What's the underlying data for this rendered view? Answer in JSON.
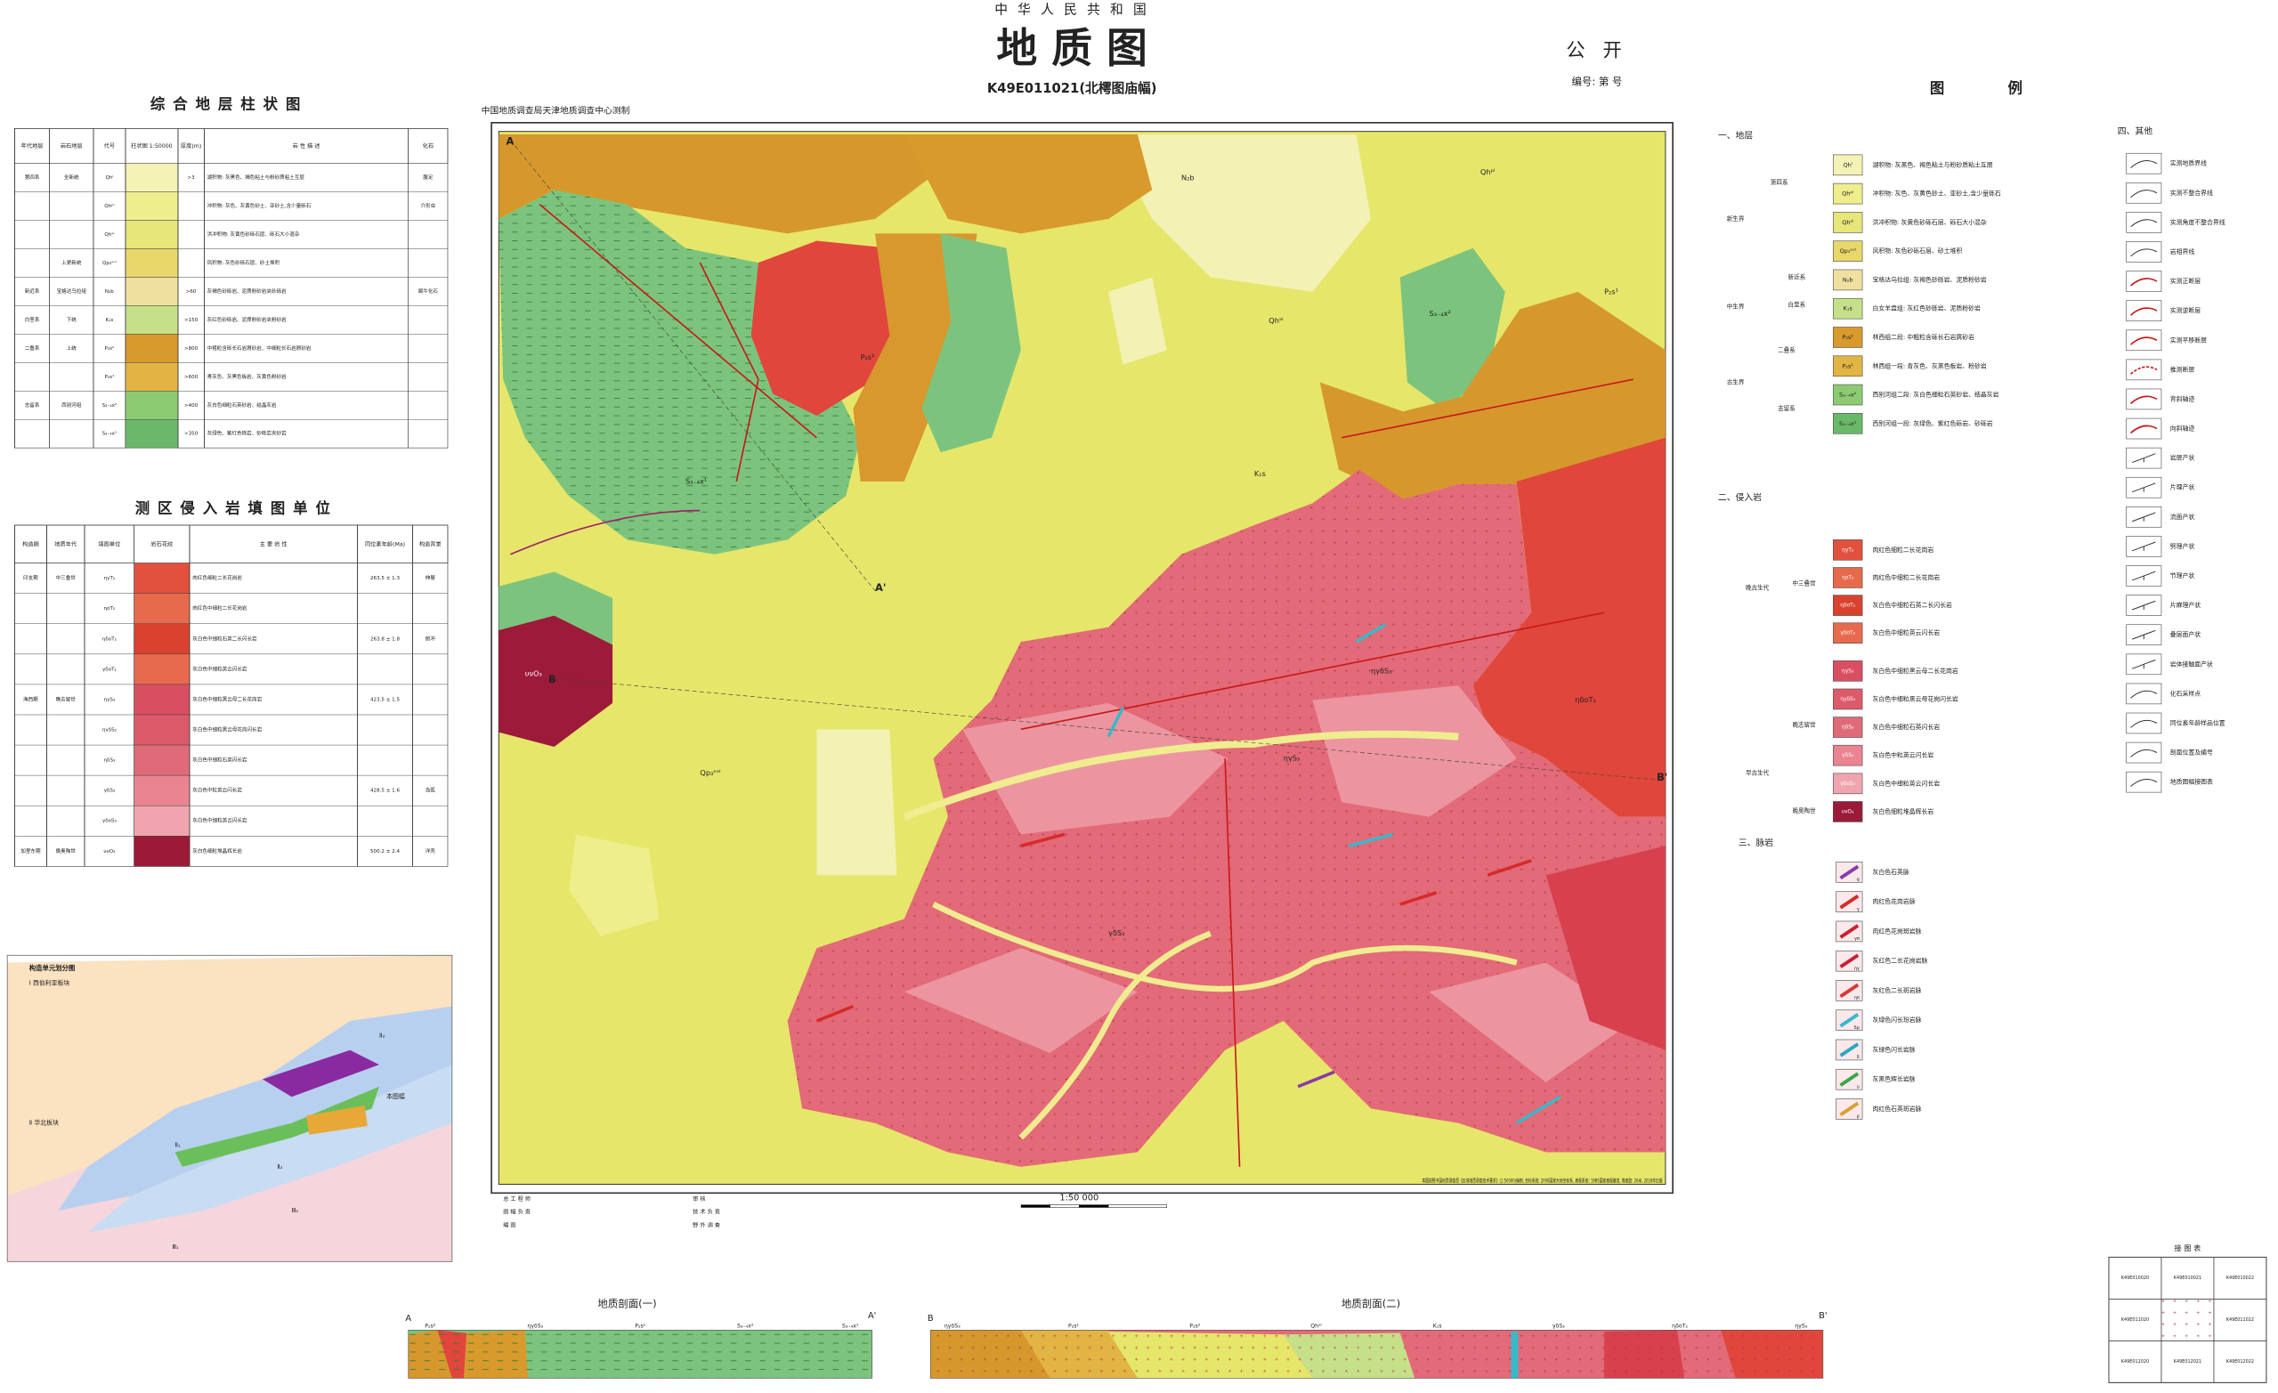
{
  "header": {
    "country": "中 华 人 民 共 和 国",
    "title": "地 质 图",
    "sheet": "K49E011021(北樗图庙幅)",
    "secrecy": "公 开",
    "number": "编号: 第 号",
    "surveyor": "中国地质调查局天津地质调查中心测制"
  },
  "strat_column": {
    "title": "综 合 地 层 柱 状 图",
    "headers": [
      "年代地层",
      "岩石地层",
      "代号",
      "柱状图 1:50000",
      "厚度(m)",
      "岩 性 描 述",
      "化石"
    ],
    "rows": [
      {
        "era": "第四系",
        "series": "全新统",
        "code": "Qhˡ",
        "thickness": ">3",
        "desc": "湖积物: 灰黑色、褐色粘土与粉砂质粘土互层",
        "fossil": "腹足"
      },
      {
        "code": "Qhᵖˡ",
        "desc": "冲积物: 灰色、灰黄色砂土、亚砂土,含少量砾石",
        "fossil": "介形虫"
      },
      {
        "code": "Qhᵃˡ",
        "desc": "洪冲积物: 灰黄色砂砾石层、砾石大小混杂"
      },
      {
        "series": "上更新统",
        "code": "Qp₃ᵉᵒˡ",
        "desc": "风积物: 灰色砂砾石层、砂土堆积"
      },
      {
        "era": "新近系",
        "series": "宝格达乌拉组",
        "code": "N₂b",
        "thickness": ">60",
        "desc": "灰褐色砂砾岩、泥质粉砂岩夹砂砾岩",
        "fossil": "犀牛化石"
      },
      {
        "era": "白垩系",
        "series": "下统",
        "code": "K₁s",
        "thickness": ">150",
        "desc": "灰红色砂砾岩、泥质粉砂岩夹粉砂岩"
      },
      {
        "era": "二叠系",
        "series": "上统",
        "code": "P₂s²",
        "thickness": ">800",
        "desc": "中粗粒含砾长石岩屑砂岩、中细粒长石岩屑砂岩"
      },
      {
        "code": "P₂s¹",
        "thickness": ">600",
        "desc": "青灰色、灰黑色板岩、灰黄色粉砂岩"
      },
      {
        "era": "志留系",
        "series": "西别河组",
        "code": "S₃₋₄x²",
        "thickness": ">400",
        "desc": "灰白色细粒石英砂岩、结晶灰岩"
      },
      {
        "code": "S₃₋₄x¹",
        "thickness": ">350",
        "desc": "灰绿色、紫红色砾岩、砂砾岩夹砂岩"
      }
    ],
    "colors": [
      "#f4f2b4",
      "#eeee8c",
      "#e6e67a",
      "#e8d86a",
      "#f0e0a0",
      "#c6e08a",
      "#d89a2c",
      "#e2b444",
      "#8ccb72",
      "#6ab86a"
    ]
  },
  "intrusive_table": {
    "title": "测 区 侵 入 岩 填 图 单 位",
    "headers": [
      "构造期",
      "地质年代",
      "填图单位",
      "岩石花纹",
      "主 要 岩 性",
      "同位素年龄(Ma)",
      "构造背景"
    ],
    "rows": [
      {
        "era": "印支期",
        "period": "中三叠世",
        "code": "ηγT₂",
        "desc": "肉红色细粒二长花岗岩",
        "age": "263.5 ± 1.3",
        "setting": "伸展"
      },
      {
        "code": "ηoT₂",
        "desc": "肉红色中细粒二长花岗岩"
      },
      {
        "code": "ηδoT₂",
        "desc": "灰白色中细粒石英二长闪长岩",
        "age": "263.8 ± 1.8",
        "setting": "俯冲"
      },
      {
        "code": "γδoT₂",
        "desc": "灰白色中细粒英云闪长岩"
      },
      {
        "era": "海西期",
        "period": "晚志留世",
        "code": "ηγS₃",
        "desc": "灰白色中细粒黑云母二长花岗岩",
        "age": "423.5 ± 1.5"
      },
      {
        "code": "ηγδS₃",
        "desc": "灰白色中细粒黑云母花岗闪长岩"
      },
      {
        "code": "ηδS₃",
        "desc": "灰白色中细粒石英闪长岩"
      },
      {
        "code": "γδS₃",
        "desc": "灰白色中粒英云闪长岩",
        "age": "428.5 ± 1.6",
        "setting": "岛弧"
      },
      {
        "code": "γδoS₃",
        "desc": "灰白色中细粒英云闪长岩"
      },
      {
        "era": "加里东期",
        "period": "晚奥陶世",
        "code": "υνO₃",
        "desc": "灰白色细粒堆晶辉长岩",
        "age": "500.2 ± 2.4",
        "setting": "洋壳"
      }
    ],
    "colors": [
      "#e2503e",
      "#e66a4c",
      "#d8422e",
      "#e86a4e",
      "#d94f62",
      "#dc5a6a",
      "#e06b78",
      "#e98490",
      "#f0a5ae",
      "#9a1a38"
    ]
  },
  "legend": {
    "title": "图 例",
    "strata": {
      "title": "一、地层",
      "groups": [
        "新生界",
        "中生界",
        "古生界",
        "第四系",
        "新近系",
        "白垩系",
        "二叠系",
        "志留系"
      ],
      "items": [
        {
          "code": "Qhˡ",
          "label": "湖积物: 灰黑色、褐色粘土与粉砂质粘土互层",
          "color": "#f4f2b4"
        },
        {
          "code": "Qhᵖˡ",
          "label": "冲积物: 灰色、灰黄色砂土、亚砂土,含少量砾石",
          "color": "#eeee8c"
        },
        {
          "code": "Qhᵃˡ",
          "label": "洪冲积物: 灰黄色砂砾石层、砾石大小混杂",
          "color": "#e6e67a"
        },
        {
          "code": "Qp₃ᵉᵒˡ",
          "label": "风积物: 灰色砂砾石层、砂土堆积",
          "color": "#e8d86a"
        },
        {
          "code": "N₂b",
          "label": "宝格达乌拉组: 灰褐色砂砾岩、泥质粉砂岩",
          "color": "#f0e0a0"
        },
        {
          "code": "K₁s",
          "label": "白女羊盘组: 灰红色砂砾岩、泥质粉砂岩",
          "color": "#c6e08a"
        },
        {
          "code": "P₂s²",
          "label": "林西组二段: 中粗粒含砾长石岩屑砂岩",
          "color": "#d89a2c"
        },
        {
          "code": "P₂s¹",
          "label": "林西组一段: 青灰色、灰黑色板岩、粉砂岩",
          "color": "#e2b444"
        },
        {
          "code": "S₃₋₄x²",
          "label": "西别河组二段: 灰白色细粒石英砂岩、结晶灰岩",
          "color": "#8ccb72"
        },
        {
          "code": "S₃₋₄x¹",
          "label": "西别河组一段: 灰绿色、紫红色砾岩、砂砾岩",
          "color": "#6ab86a"
        }
      ]
    },
    "intrusive": {
      "title": "二、侵入岩",
      "groups": [
        "晚古生代",
        "中三叠世",
        "早古生代",
        "晚志留世",
        "晚奥陶世"
      ],
      "items": [
        {
          "code": "ηγT₂",
          "label": "肉红色细粒二长花岗岩",
          "color": "#e2503e"
        },
        {
          "code": "ηoT₂",
          "label": "肉红色中细粒二长花岗岩",
          "color": "#e66a4c"
        },
        {
          "code": "ηδoT₂",
          "label": "灰白色中细粒石英二长闪长岩",
          "color": "#d8422e"
        },
        {
          "code": "γδoT₂",
          "label": "灰白色中细粒英云闪长岩",
          "color": "#e86a4e"
        },
        {
          "code": "ηγS₃",
          "label": "灰白色中细粒黑云母二长花岗岩",
          "color": "#d94f62"
        },
        {
          "code": "ηγδS₃",
          "label": "灰白色中细粒黑云母花岗闪长岩",
          "color": "#dc5a6a"
        },
        {
          "code": "ηδS₃",
          "label": "灰白色中细粒石英闪长岩",
          "color": "#e06b78"
        },
        {
          "code": "γδS₃",
          "label": "灰白色中粒英云闪长岩",
          "color": "#e98490"
        },
        {
          "code": "γδoS₃",
          "label": "灰白色中细粒英云闪长岩",
          "color": "#f0a5ae"
        },
        {
          "code": "υνO₃",
          "label": "灰白色细粒堆晶辉长岩",
          "color": "#9a1a38"
        }
      ]
    },
    "dikes": {
      "title": "三、脉岩",
      "items": [
        {
          "code": "q",
          "label": "灰白色石英脉",
          "color": "#8a3aa8"
        },
        {
          "code": "γ",
          "label": "肉红色花岗岩脉",
          "color": "#d62a2a"
        },
        {
          "code": "γπ",
          "label": "肉红色花岗斑岩脉",
          "color": "#cc2030"
        },
        {
          "code": "ηγ",
          "label": "灰红色二长花岗岩脉",
          "color": "#c8203a"
        },
        {
          "code": "ηπ",
          "label": "灰红色二长斑岩脉",
          "color": "#d43a3a"
        },
        {
          "code": "δμ",
          "label": "灰绿色闪长玢岩脉",
          "color": "#3ab8c8"
        },
        {
          "code": "δ",
          "label": "灰绿色闪长岩脉",
          "color": "#2ea8c0"
        },
        {
          "code": "υ",
          "label": "灰黑色辉长岩脉",
          "color": "#3aa848"
        },
        {
          "code": "ρ",
          "label": "肉红色石英斑岩脉",
          "color": "#d8a030"
        }
      ]
    },
    "others": {
      "title": "四、其他",
      "items": [
        "实测地质界线",
        "实测不整合界线",
        "实测角度不整合界线",
        "岩相界线",
        "实测正断层",
        "实测逆断层",
        "实测平移断层",
        "推测断层",
        "背斜轴迹",
        "向斜轴迹",
        "岩层产状",
        "片理产状",
        "流面产状",
        "劈理产状",
        "节理产状",
        "片麻理产状",
        "叠层面产状",
        "岩体接触面产状",
        "化石采样点",
        "同位素年龄样品位置",
        "剖面位置及编号",
        "地质图幅接图表"
      ]
    }
  },
  "map_labels": [
    "Qhᵖˡ",
    "Qhᵃˡ",
    "Qp₃ᵉᵒˡ",
    "N₂b",
    "K₁s",
    "P₂s²",
    "P₂s¹",
    "S₃₋₄x²",
    "S₃₋₄x¹",
    "ηγS₃",
    "ηγδS₃",
    "γδS₃",
    "ηδoT₂",
    "υνO₃",
    "A",
    "A'",
    "B",
    "B'"
  ],
  "scale": "1:50 000",
  "notes": {
    "left": [
      "总 工 程 师",
      "审 核",
      "图 幅 负 责",
      "技 术 负 责",
      "编 图",
      "野 外 调 查"
    ],
    "right": "本图按照中国地质调查局《区域地质调查技术要求》(1:50000)编制, 坐标系统: 2000国家大地坐标系, 高程系统: 1985国家高程基准, 等高距: 20米, 2016年出版"
  },
  "sections": [
    {
      "title": "地质剖面(一)",
      "start": "A",
      "end": "A'",
      "labels": [
        "P₂s²",
        "ηγδS₃",
        "P₂s¹",
        "S₃₋₄x²",
        "S₃₋₄x¹"
      ]
    },
    {
      "title": "地质剖面(二)",
      "start": "B",
      "end": "B'",
      "labels": [
        "ηγδS₃",
        "P₂s¹",
        "P₂s²",
        "Qhᵃˡ",
        "K₁s",
        "γδS₃",
        "ηδoT₂",
        "ηγS₃"
      ]
    }
  ],
  "inset": {
    "title": "构造单元划分图",
    "labels": [
      "Ⅰ 西伯利亚板块",
      "Ⅱ 华北板块",
      "Ⅲ₁",
      "Ⅲ₂",
      "Ⅱ₁",
      "Ⅱ₂",
      "Ⅱ₃",
      "本图幅"
    ]
  },
  "index_map": {
    "title": "接 图 表",
    "cells": [
      "K49E010020",
      "K49E010021",
      "K49E010022",
      "K49E011020",
      "K49E011022",
      "K49E012020",
      "K49E012021",
      "K49E012022"
    ]
  }
}
